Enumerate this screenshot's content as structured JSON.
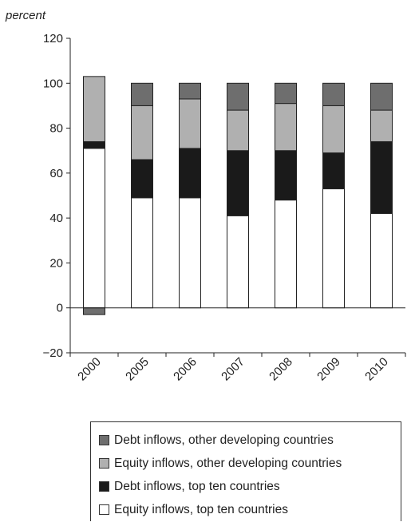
{
  "chart_data": {
    "type": "bar",
    "stacked": true,
    "unit_label": "percent",
    "title": "",
    "xlabel": "",
    "ylabel": "",
    "categories": [
      "2000",
      "2005",
      "2006",
      "2007",
      "2008",
      "2009",
      "2010"
    ],
    "ylim": [
      -20,
      120
    ],
    "yticks": [
      -20,
      0,
      20,
      40,
      60,
      80,
      100,
      120
    ],
    "grid": false,
    "legend_position": "bottom",
    "series": [
      {
        "name": "Equity inflows, top ten countries",
        "color": "#ffffff",
        "values": [
          71,
          49,
          49,
          41,
          48,
          53,
          42
        ]
      },
      {
        "name": "Debt inflows, top ten countries",
        "color": "#1a1a1a",
        "values": [
          3,
          17,
          22,
          29,
          22,
          16,
          32
        ]
      },
      {
        "name": "Equity inflows, other developing countries",
        "color": "#b0b0b0",
        "values": [
          29,
          24,
          22,
          18,
          21,
          21,
          14
        ]
      },
      {
        "name": "Debt inflows, other developing countries",
        "color": "#6e6e6e",
        "values": [
          -3,
          10,
          7,
          12,
          9,
          10,
          12
        ]
      }
    ],
    "legend_order": [
      3,
      2,
      1,
      0
    ]
  }
}
